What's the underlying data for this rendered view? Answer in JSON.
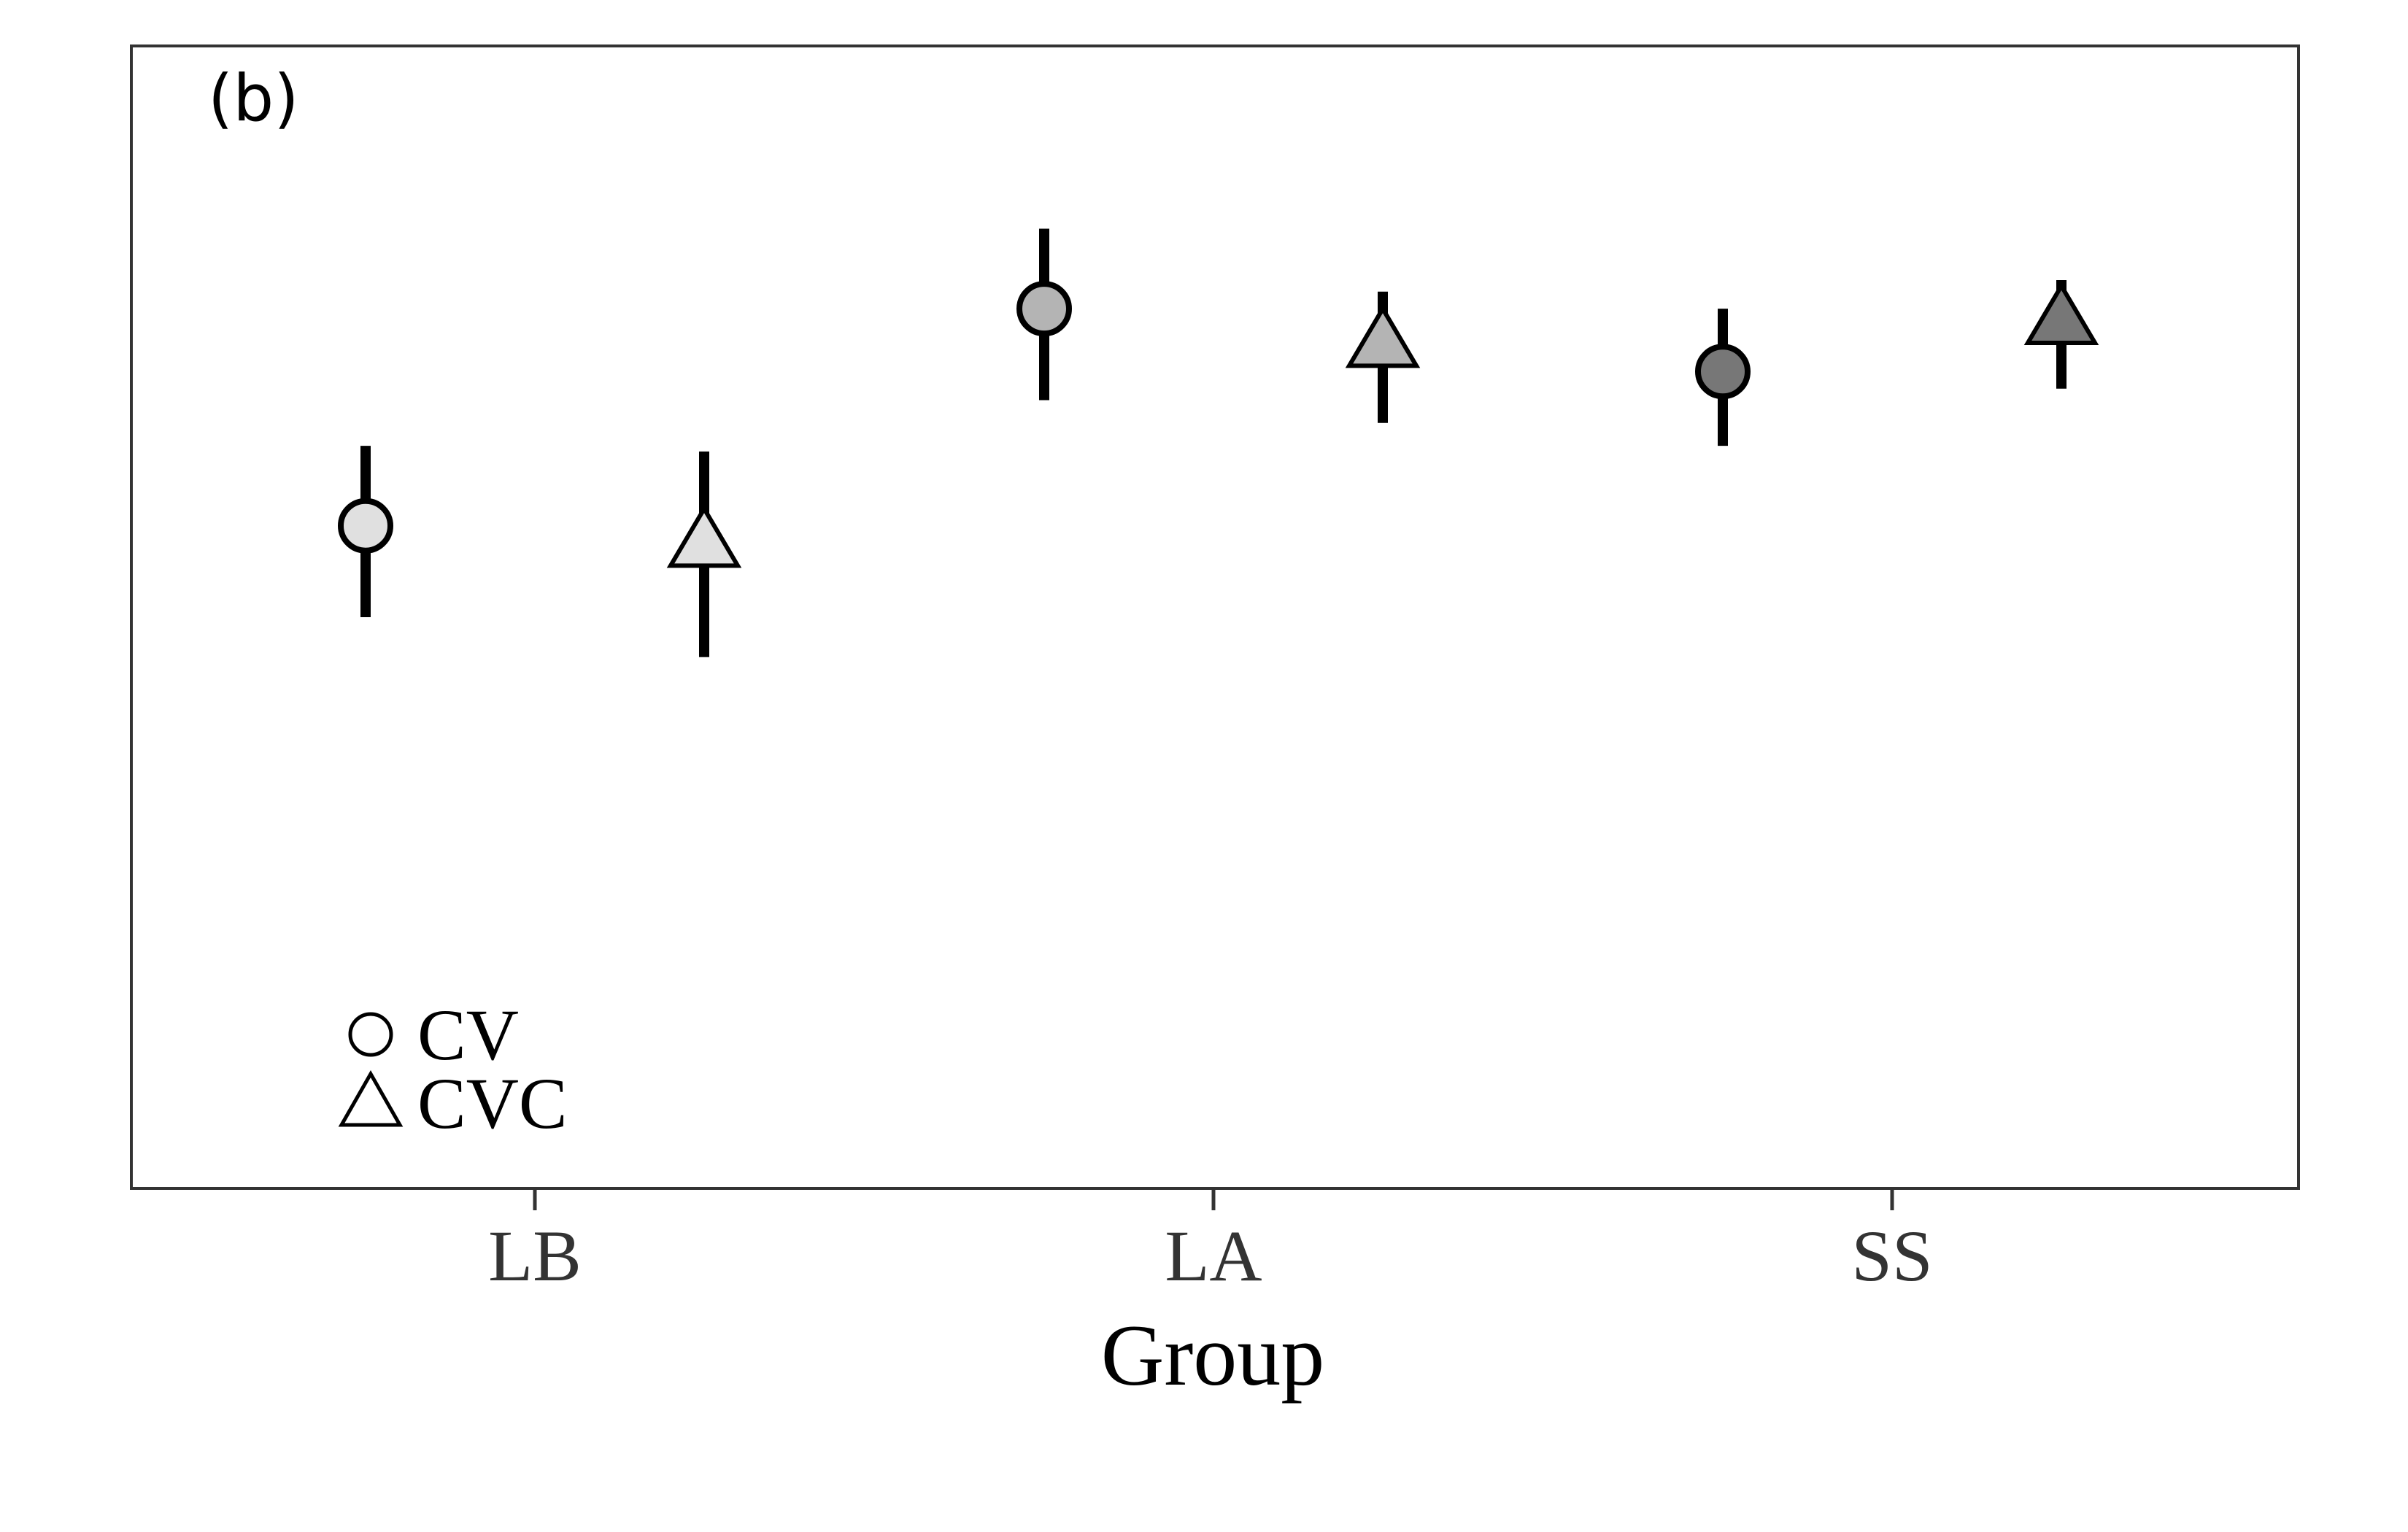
{
  "chart_data": {
    "type": "scatter",
    "panel_label": "(b)",
    "xlabel": "Group",
    "ylabel": "",
    "categories": [
      "LB",
      "LA",
      "SS"
    ],
    "ylim": [
      0,
      1
    ],
    "grid": false,
    "legend": {
      "placement": "bottom-left",
      "entries": [
        {
          "label": "CV",
          "marker": "circle"
        },
        {
          "label": "CVC",
          "marker": "triangle"
        }
      ]
    },
    "series": [
      {
        "name": "CV",
        "marker": "circle",
        "points": [
          {
            "category": "LB",
            "y": 0.58,
            "low": 0.5,
            "high": 0.65,
            "fill": "#e0e0e0"
          },
          {
            "category": "LA",
            "y": 0.77,
            "low": 0.69,
            "high": 0.84,
            "fill": "#b4b4b4"
          },
          {
            "category": "SS",
            "y": 0.715,
            "low": 0.65,
            "high": 0.77,
            "fill": "#777777"
          }
        ]
      },
      {
        "name": "CVC",
        "marker": "triangle",
        "points": [
          {
            "category": "LB",
            "y": 0.57,
            "low": 0.465,
            "high": 0.645,
            "fill": "#e0e0e0"
          },
          {
            "category": "LA",
            "y": 0.745,
            "low": 0.67,
            "high": 0.785,
            "fill": "#b4b4b4"
          },
          {
            "category": "SS",
            "y": 0.765,
            "low": 0.7,
            "high": 0.795,
            "fill": "#777777"
          }
        ]
      }
    ]
  }
}
